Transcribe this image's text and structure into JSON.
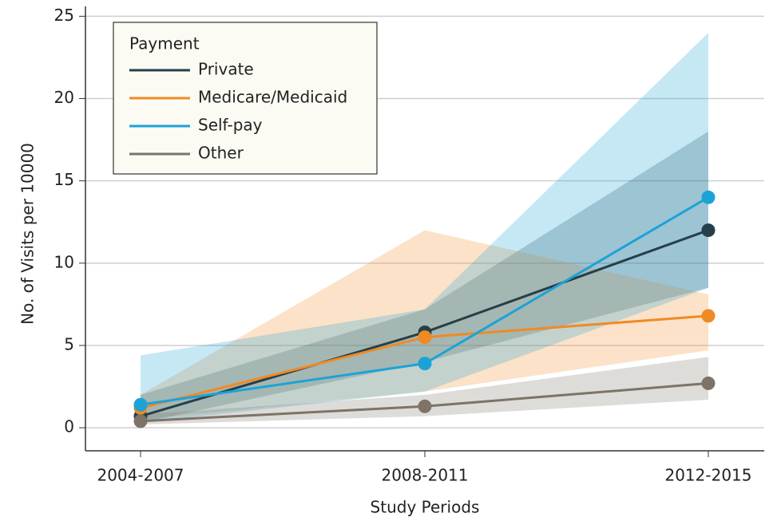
{
  "chart_data": {
    "type": "line",
    "x_label": "Study Periods",
    "y_label": "No. of Visits per 10000",
    "categories": [
      "2004-2007",
      "2008-2011",
      "2012-2015"
    ],
    "legend_title": "Payment",
    "legend_position": "upper left",
    "grid": true,
    "ylim": [
      -1.4,
      25.6
    ],
    "yticks": [
      0,
      5,
      10,
      15,
      20,
      25
    ],
    "series": [
      {
        "name": "Private",
        "color": "#263f4a",
        "values": [
          0.7,
          5.8,
          12.0
        ],
        "lower": [
          0.3,
          4.0,
          8.5
        ],
        "upper": [
          2.0,
          7.2,
          18.0
        ]
      },
      {
        "name": "Medicare/Medicaid",
        "color": "#f08a24",
        "values": [
          1.2,
          5.5,
          6.8
        ],
        "lower": [
          0.5,
          2.2,
          4.7
        ],
        "upper": [
          2.0,
          12.0,
          8.1
        ]
      },
      {
        "name": "Self-pay",
        "color": "#1ba3d8",
        "values": [
          1.4,
          3.9,
          14.0
        ],
        "lower": [
          0.3,
          2.2,
          8.5
        ],
        "upper": [
          4.4,
          7.2,
          24.0
        ]
      },
      {
        "name": "Other",
        "color": "#7d7367",
        "values": [
          0.4,
          1.3,
          2.7
        ],
        "lower": [
          0.2,
          0.7,
          1.7
        ],
        "upper": [
          0.8,
          2.0,
          4.3
        ]
      }
    ]
  }
}
